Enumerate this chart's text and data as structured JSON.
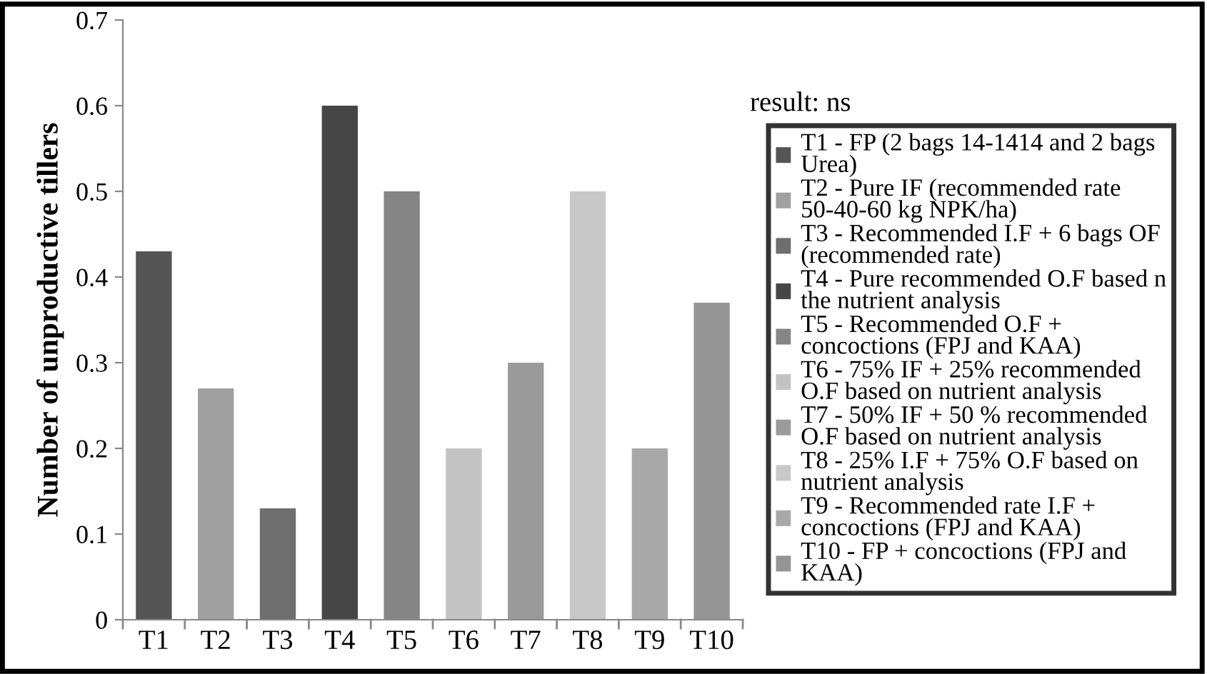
{
  "chart_data": {
    "type": "bar",
    "ylabel": "Number of unproductive tillers",
    "categories": [
      "T1",
      "T2",
      "T3",
      "T4",
      "T5",
      "T6",
      "T7",
      "T8",
      "T9",
      "T10"
    ],
    "series": [
      {
        "name": "T1 - FP (2 bags 14-1414 and 2 bags Urea)",
        "color": "#555555",
        "values": [
          0.43,
          null,
          null,
          null,
          null,
          null,
          null,
          null,
          null,
          null
        ]
      },
      {
        "name": "T2 - Pure IF (recommended rate 50-40-60 kg NPK/ha)",
        "color": "#a0a0a0",
        "values": [
          null,
          0.27,
          null,
          null,
          null,
          null,
          null,
          null,
          null,
          null
        ]
      },
      {
        "name": "T3 - Recommended I.F + 6 bags OF (recommended rate)",
        "color": "#6e6e6e",
        "values": [
          null,
          null,
          0.13,
          null,
          null,
          null,
          null,
          null,
          null,
          null
        ]
      },
      {
        "name": "T4 - Pure recommended O.F based n the nutrient analysis",
        "color": "#464646",
        "values": [
          null,
          null,
          null,
          0.6,
          null,
          null,
          null,
          null,
          null,
          null
        ]
      },
      {
        "name": "T5 - Recommended O.F + concoctions (FPJ and KAA)",
        "color": "#858585",
        "values": [
          null,
          null,
          null,
          null,
          0.5,
          null,
          null,
          null,
          null,
          null
        ]
      },
      {
        "name": "T6 - 75% IF + 25% recommended O.F based on nutrient analysis",
        "color": "#c3c3c3",
        "values": [
          null,
          null,
          null,
          null,
          null,
          0.2,
          null,
          null,
          null,
          null
        ]
      },
      {
        "name": "T7 - 50% IF + 50 % recommended O.F based on nutrient analysis",
        "color": "#9b9b9b",
        "values": [
          null,
          null,
          null,
          null,
          null,
          null,
          0.3,
          null,
          null,
          null
        ]
      },
      {
        "name": "T8 - 25% I.F + 75% O.F based on nutrient analysis",
        "color": "#c8c8c8",
        "values": [
          null,
          null,
          null,
          null,
          null,
          null,
          null,
          0.5,
          null,
          null
        ]
      },
      {
        "name": "T9 - Recommended rate I.F + concoctions (FPJ and KAA)",
        "color": "#a8a8a8",
        "values": [
          null,
          null,
          null,
          null,
          null,
          null,
          null,
          null,
          0.2,
          null
        ]
      },
      {
        "name": "T10 - FP + concoctions (FPJ and KAA)",
        "color": "#959595",
        "values": [
          null,
          null,
          null,
          null,
          null,
          null,
          null,
          null,
          null,
          0.37
        ]
      }
    ],
    "ylim": [
      0,
      0.7
    ],
    "yticks": [
      {
        "value": 0,
        "label": "0"
      },
      0.1,
      0.2,
      0.3,
      0.4,
      0.5,
      0.6,
      0.7
    ],
    "annotations": [
      "result: ns"
    ],
    "grid": false,
    "legend": "right"
  }
}
